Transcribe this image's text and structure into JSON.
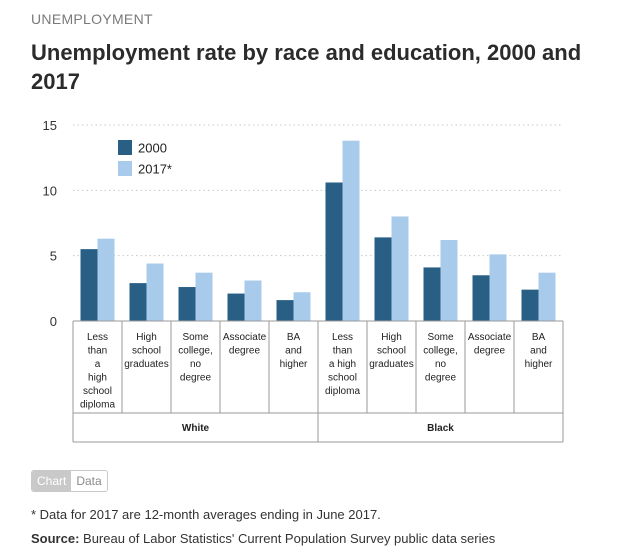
{
  "eyebrow": "UNEMPLOYMENT",
  "title": "Unemployment rate by race and education, 2000 and 2017",
  "toggle": {
    "chart_label": "Chart",
    "data_label": "Data"
  },
  "footnote": "* Data for 2017 are 12-month averages ending in June 2017.",
  "source": {
    "label": "Source:",
    "text": " Bureau of Labor Statistics' Current Population Survey public data series"
  },
  "chart_data": {
    "type": "bar",
    "title": "",
    "xlabel": "",
    "ylabel": "",
    "ylim": [
      0,
      15
    ],
    "yticks": [
      0,
      5,
      10,
      15
    ],
    "grid": true,
    "legend_position": "top-left",
    "groups": [
      {
        "label": "White",
        "categories": [
          "Less than a high school diploma",
          "High school graduates",
          "Some college, no degree",
          "Associate degree",
          "BA and higher"
        ]
      },
      {
        "label": "Black",
        "categories": [
          "Less than a high school diploma",
          "High school graduates",
          "Some college, no degree",
          "Associate degree",
          "BA and higher"
        ]
      }
    ],
    "category_lines": [
      [
        "Less",
        "than",
        "a",
        "high",
        "school",
        "diploma"
      ],
      [
        "High",
        "school",
        "graduates"
      ],
      [
        "Some",
        "college,",
        "no",
        "degree"
      ],
      [
        "Associate",
        "degree"
      ],
      [
        "BA",
        "and",
        "higher"
      ],
      [
        "Less",
        "than",
        "a high",
        "school",
        "diploma"
      ],
      [
        "High",
        "school",
        "graduates"
      ],
      [
        "Some",
        "college,",
        "no",
        "degree"
      ],
      [
        "Associate",
        "degree"
      ],
      [
        "BA",
        "and",
        "higher"
      ]
    ],
    "series": [
      {
        "name": "2000",
        "color": "#2a5f85",
        "values": [
          5.5,
          2.9,
          2.6,
          2.1,
          1.6,
          10.6,
          6.4,
          4.1,
          3.5,
          2.4
        ]
      },
      {
        "name": "2017*",
        "color": "#a9cbeb",
        "values": [
          6.3,
          4.4,
          3.7,
          3.1,
          2.2,
          13.8,
          8.0,
          6.2,
          5.1,
          3.7
        ]
      }
    ]
  }
}
